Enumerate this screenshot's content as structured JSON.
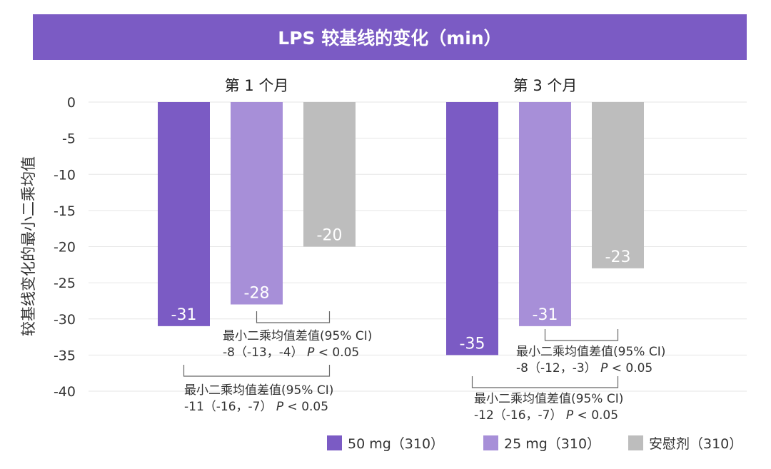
{
  "chart_data": {
    "type": "bar",
    "title": "LPS 较基线的变化（min）",
    "ylabel": "较基线变化的最小二乘均值",
    "ylim": [
      -40,
      0
    ],
    "yticks": [
      0,
      -5,
      -10,
      -15,
      -20,
      -25,
      -30,
      -35,
      -40
    ],
    "grid": true,
    "legend_position": "bottom-right",
    "categories": [
      "第 1 个月",
      "第 3 个月"
    ],
    "series": [
      {
        "name": "50 mg（310）",
        "color": "#7B5BC4",
        "values": [
          -31,
          -35
        ]
      },
      {
        "name": "25 mg（310）",
        "color": "#A78FD8",
        "values": [
          -28,
          -31
        ]
      },
      {
        "name": "安慰剂（310）",
        "color": "#BDBDBD",
        "values": [
          -20,
          -23
        ]
      }
    ],
    "annotations": [
      {
        "group": 0,
        "from_series": 1,
        "to_series": 2,
        "line1": "最小二乘均值差值(95% CI)",
        "line2_ci": "-8（-13，-4）",
        "line2_p_label": "P",
        "line2_p_value": "< 0.05"
      },
      {
        "group": 0,
        "from_series": 0,
        "to_series": 2,
        "line1": "最小二乘均值差值(95% CI)",
        "line2_ci": "-11（-16，-7）",
        "line2_p_label": "P",
        "line2_p_value": "< 0.05"
      },
      {
        "group": 1,
        "from_series": 1,
        "to_series": 2,
        "line1": "最小二乘均值差值(95% CI)",
        "line2_ci": "-8（-12，-3）",
        "line2_p_label": "P",
        "line2_p_value": "< 0.05"
      },
      {
        "group": 1,
        "from_series": 0,
        "to_series": 2,
        "line1": "最小二乘均值差值(95% CI)",
        "line2_ci": "-12（-16，-7）",
        "line2_p_label": "P",
        "line2_p_value": "< 0.05"
      }
    ]
  }
}
